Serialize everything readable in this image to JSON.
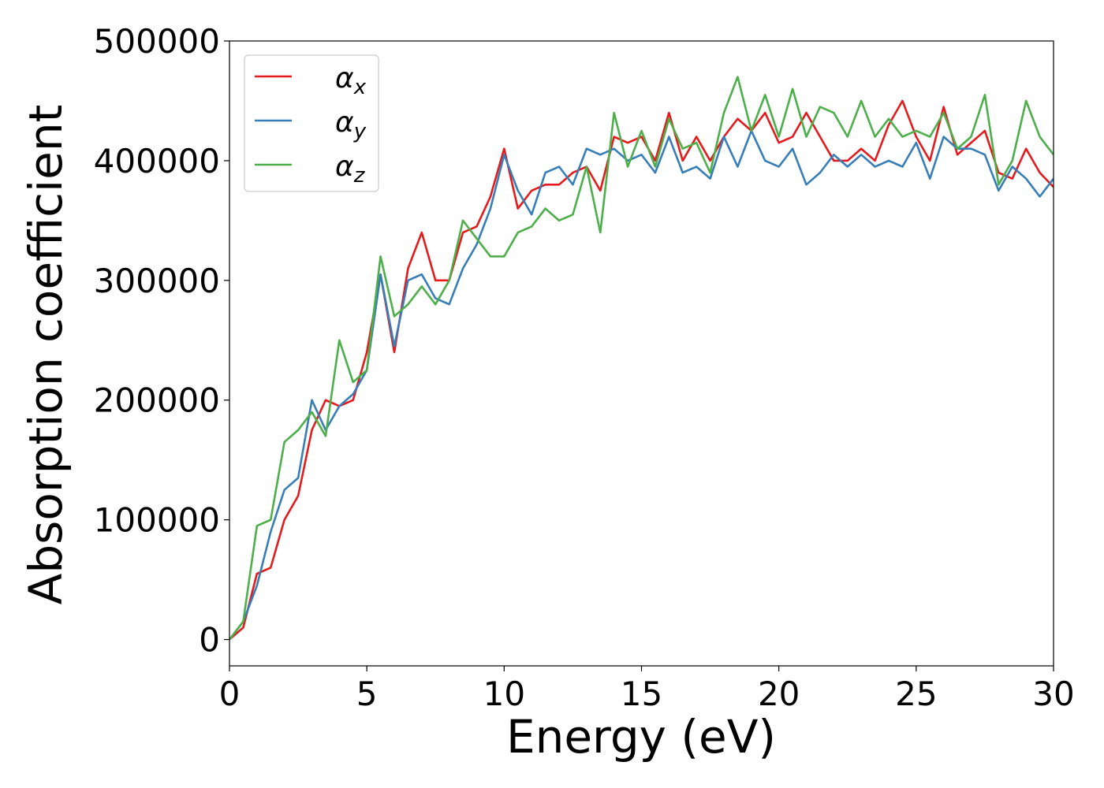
{
  "chart_data": {
    "type": "line",
    "xlabel": "Energy (eV)",
    "ylabel": "Absorption coefficient",
    "x": [
      0,
      0.5,
      1,
      1.5,
      2,
      2.5,
      3,
      3.5,
      4,
      4.5,
      5,
      5.5,
      6,
      6.5,
      7,
      7.5,
      8,
      8.5,
      9,
      9.5,
      10,
      10.5,
      11,
      11.5,
      12,
      12.5,
      13,
      13.5,
      14,
      14.5,
      15,
      15.5,
      16,
      16.5,
      17,
      17.5,
      18,
      18.5,
      19,
      19.5,
      20,
      20.5,
      21,
      21.5,
      22,
      22.5,
      23,
      23.5,
      24,
      24.5,
      25,
      25.5,
      26,
      26.5,
      27,
      27.5,
      28,
      28.5,
      29,
      29.5,
      30
    ],
    "series": [
      {
        "name": "αx",
        "color": "#e41a1c",
        "values": [
          0,
          10000,
          55000,
          60000,
          100000,
          120000,
          175000,
          200000,
          195000,
          200000,
          240000,
          305000,
          240000,
          310000,
          340000,
          300000,
          300000,
          340000,
          345000,
          370000,
          410000,
          360000,
          375000,
          380000,
          380000,
          390000,
          395000,
          375000,
          420000,
          415000,
          420000,
          400000,
          440000,
          400000,
          420000,
          400000,
          420000,
          435000,
          425000,
          440000,
          415000,
          420000,
          440000,
          420000,
          400000,
          400000,
          410000,
          400000,
          430000,
          450000,
          420000,
          400000,
          445000,
          405000,
          415000,
          425000,
          390000,
          385000,
          410000,
          390000,
          378000
        ]
      },
      {
        "name": "αy",
        "color": "#377eb8",
        "values": [
          0,
          15000,
          45000,
          90000,
          125000,
          135000,
          200000,
          175000,
          195000,
          205000,
          225000,
          305000,
          245000,
          300000,
          305000,
          285000,
          280000,
          310000,
          330000,
          360000,
          405000,
          375000,
          355000,
          390000,
          395000,
          380000,
          410000,
          405000,
          410000,
          400000,
          405000,
          390000,
          420000,
          390000,
          395000,
          385000,
          420000,
          395000,
          425000,
          400000,
          395000,
          410000,
          380000,
          390000,
          405000,
          395000,
          405000,
          395000,
          400000,
          395000,
          415000,
          385000,
          420000,
          410000,
          410000,
          405000,
          375000,
          395000,
          385000,
          370000,
          385000
        ]
      },
      {
        "name": "αz",
        "color": "#4daf4a",
        "values": [
          0,
          15000,
          95000,
          100000,
          165000,
          175000,
          190000,
          170000,
          250000,
          215000,
          225000,
          320000,
          270000,
          280000,
          295000,
          280000,
          300000,
          350000,
          335000,
          320000,
          320000,
          340000,
          345000,
          360000,
          350000,
          355000,
          395000,
          340000,
          440000,
          395000,
          425000,
          395000,
          435000,
          410000,
          415000,
          390000,
          440000,
          470000,
          425000,
          455000,
          420000,
          460000,
          420000,
          445000,
          440000,
          420000,
          450000,
          420000,
          435000,
          420000,
          425000,
          420000,
          440000,
          410000,
          420000,
          455000,
          380000,
          400000,
          450000,
          420000,
          405000
        ]
      }
    ],
    "xlim": [
      0,
      30
    ],
    "xticks": [
      0,
      5,
      10,
      15,
      20,
      25,
      30
    ],
    "ylim": [
      -22000,
      500000
    ],
    "yticks": [
      0,
      100000,
      200000,
      300000,
      400000,
      500000
    ],
    "legend": "upper left"
  }
}
